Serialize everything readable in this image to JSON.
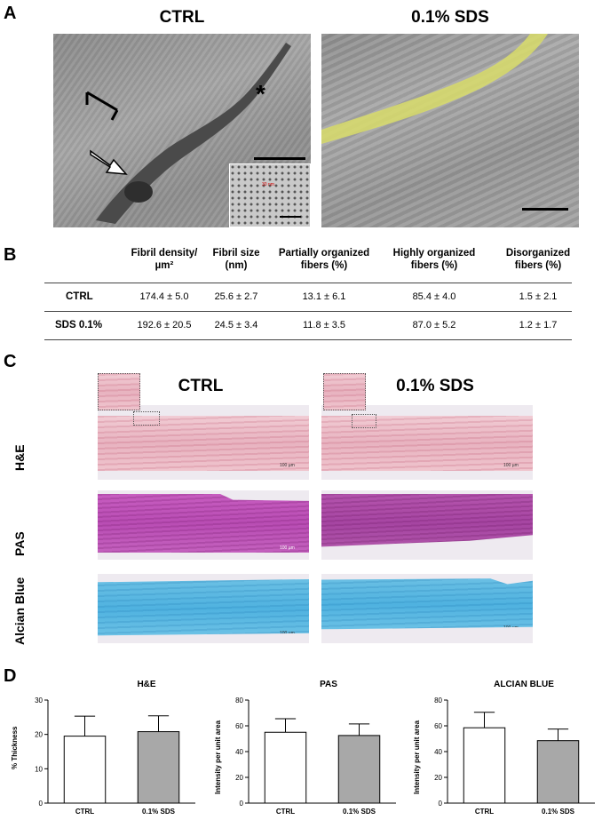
{
  "panels": {
    "a": {
      "letter": "A",
      "left_title": "CTRL",
      "right_title": "0.1% SDS",
      "asterisk": "*",
      "inset_label": "30 nm"
    },
    "b": {
      "letter": "B",
      "headers": [
        [
          "Fibril density/",
          "µm²"
        ],
        [
          "Fibril size",
          "(nm)"
        ],
        [
          "Partially organized",
          "fibers (%)"
        ],
        [
          "Highly organized",
          "fibers (%)"
        ],
        [
          "Disorganized",
          "fibers (%)"
        ]
      ],
      "rows": [
        {
          "label": "CTRL",
          "values": [
            "174.4 ± 5.0",
            "25.6 ± 2.7",
            "13.1 ± 6.1",
            "85.4 ± 4.0",
            "1.5 ± 2.1"
          ]
        },
        {
          "label": "SDS 0.1%",
          "values": [
            "192.6 ± 20.5",
            "24.5 ± 3.4",
            "11.8 ± 3.5",
            "87.0 ± 5.2",
            "1.2 ± 1.7"
          ]
        }
      ]
    },
    "c": {
      "letter": "C",
      "left_title": "CTRL",
      "right_title": "0.1% SDS",
      "stains": [
        "H&E",
        "PAS",
        "Alcian Blue"
      ],
      "scale_label": "100 µm"
    },
    "d": {
      "letter": "D"
    }
  },
  "chart_data": [
    {
      "type": "bar",
      "title": "H&E",
      "ylabel": "% Thickness",
      "xlabel": "",
      "categories": [
        "CTRL",
        "0.1% SDS"
      ],
      "values": [
        19.5,
        20.8
      ],
      "errors": [
        5.8,
        4.6
      ],
      "ylim": [
        0,
        30
      ],
      "yticks": [
        0,
        10,
        20,
        30
      ],
      "bar_colors": [
        "#ffffff",
        "#a8a8a8"
      ]
    },
    {
      "type": "bar",
      "title": "PAS",
      "ylabel": "Intensity per unit area",
      "xlabel": "",
      "categories": [
        "CTRL",
        "0.1% SDS"
      ],
      "values": [
        55,
        52.5
      ],
      "errors": [
        10.5,
        9
      ],
      "ylim": [
        0,
        80
      ],
      "yticks": [
        0,
        20,
        40,
        60,
        80
      ],
      "bar_colors": [
        "#ffffff",
        "#a8a8a8"
      ]
    },
    {
      "type": "bar",
      "title": "ALCIAN BLUE",
      "ylabel": "Intensity per unit area",
      "xlabel": "",
      "categories": [
        "CTRL",
        "0.1% SDS"
      ],
      "values": [
        58.5,
        48.5
      ],
      "errors": [
        12,
        9
      ],
      "ylim": [
        0,
        80
      ],
      "yticks": [
        0,
        20,
        40,
        60,
        80
      ],
      "bar_colors": [
        "#ffffff",
        "#a8a8a8"
      ]
    }
  ]
}
